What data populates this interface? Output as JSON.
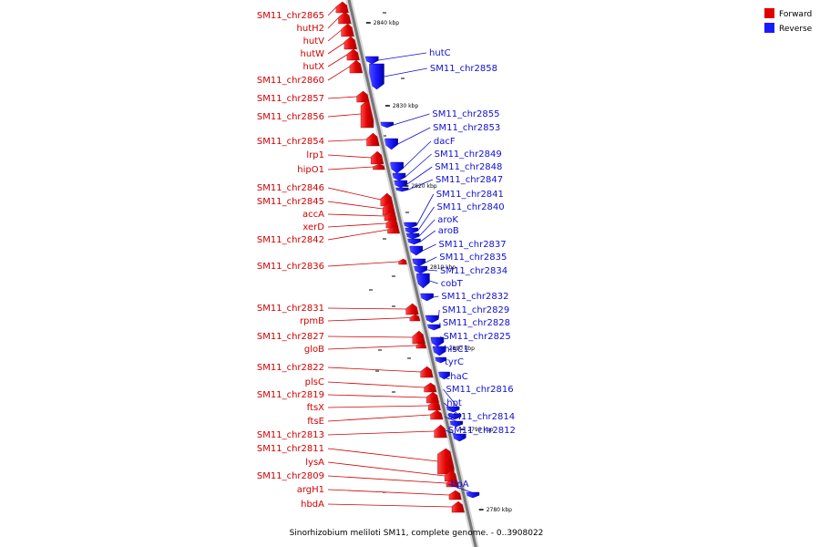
{
  "caption": "Sinorhizobium meliloti SM11, complete genome. - 0..3908022",
  "legend": {
    "forward_label": "Forward",
    "reverse_label": "Reverse",
    "forward_color": "#e00000",
    "reverse_color": "#1a1aff"
  },
  "ticks": [
    "2840 kbp",
    "2830 kbp",
    "2820 kbp",
    "2810 kbp",
    "2800 kbp",
    "2790 kbp",
    "2780 kbp"
  ],
  "forward_genes": [
    "SM11_chr2865",
    "hutH2",
    "hutV",
    "hutW",
    "hutX",
    "SM11_chr2860",
    "SM11_chr2857",
    "SM11_chr2856",
    "SM11_chr2854",
    "lrp1",
    "hipO1",
    "SM11_chr2846",
    "SM11_chr2845",
    "accA",
    "xerD",
    "SM11_chr2842",
    "SM11_chr2836",
    "SM11_chr2831",
    "rpmB",
    "SM11_chr2827",
    "gloB",
    "SM11_chr2822",
    "plsC",
    "SM11_chr2819",
    "ftsX",
    "ftsE",
    "SM11_chr2813",
    "SM11_chr2811",
    "lysA",
    "SM11_chr2809",
    "argH1",
    "hbdA"
  ],
  "reverse_genes": [
    "hutC",
    "SM11_chr2858",
    "SM11_chr2855",
    "SM11_chr2853",
    "dacF",
    "SM11_chr2849",
    "SM11_chr2848",
    "SM11_chr2847",
    "SM11_chr2841",
    "SM11_chr2840",
    "aroK",
    "aroB",
    "SM11_chr2837",
    "SM11_chr2835",
    "SM11_chr2834",
    "cobT",
    "SM11_chr2832",
    "SM11_chr2829",
    "SM11_chr2828",
    "SM11_chr2825",
    "hisC1",
    "tyrC",
    "chaC",
    "SM11_chr2816",
    "hpt",
    "SM11_chr2814",
    "SM11_chr2812",
    "tlpA"
  ]
}
